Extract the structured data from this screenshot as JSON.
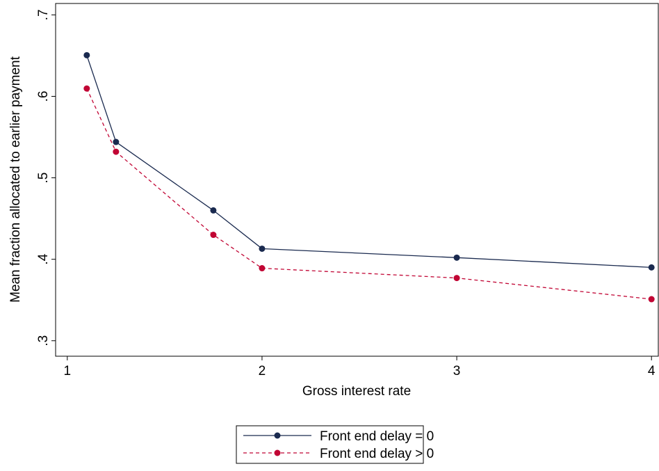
{
  "chart_data": {
    "type": "line",
    "x_label": "Gross interest rate",
    "y_label": "Mean fraction allocated to earlier payment",
    "x": [
      1.1,
      1.25,
      1.75,
      2,
      3,
      4
    ],
    "series": [
      {
        "name": "Front end delay = 0",
        "color": "#1a2a4f",
        "style": "solid",
        "values": [
          0.6505,
          0.544,
          0.46,
          0.413,
          0.402,
          0.39
        ]
      },
      {
        "name": "Front end delay > 0",
        "color": "#c10534",
        "style": "dashed",
        "values": [
          0.6096,
          0.532,
          0.43,
          0.389,
          0.377,
          0.351
        ]
      }
    ],
    "xlim": [
      0.94,
      4.035
    ],
    "xticks": [
      1,
      2,
      3,
      4
    ],
    "ylim": [
      0.281,
      0.714
    ],
    "yticks": [
      {
        "value": 0.3,
        "label": ".3"
      },
      {
        "value": 0.4,
        "label": ".4"
      },
      {
        "value": 0.5,
        "label": ".5"
      },
      {
        "value": 0.6,
        "label": ".6"
      },
      {
        "value": 0.7,
        "label": ".7"
      }
    ],
    "grid": false
  }
}
